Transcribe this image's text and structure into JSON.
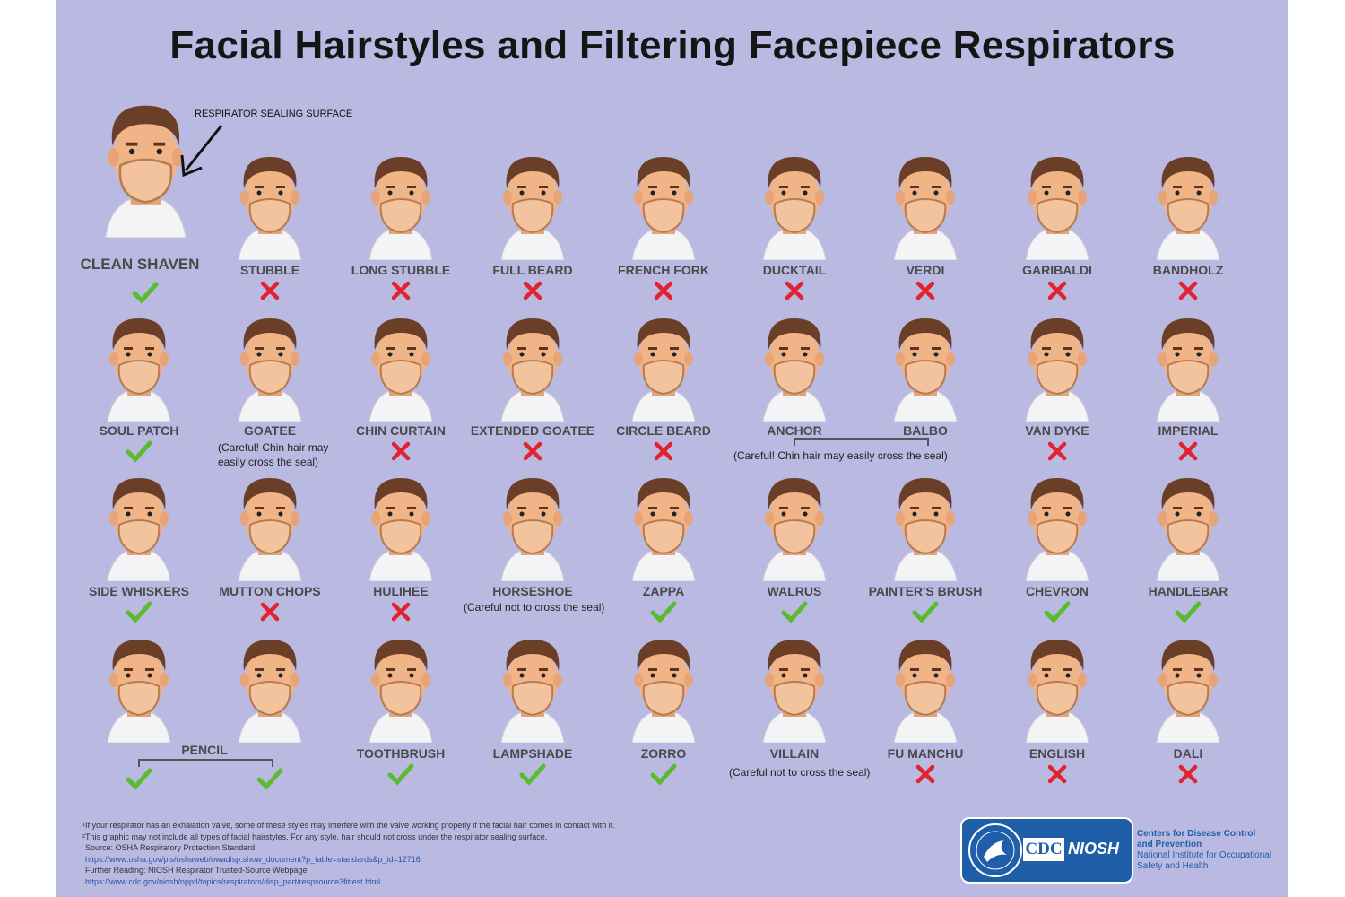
{
  "title": "Facial Hairstyles and Filtering Facepiece Respirators",
  "seal_annotation": "RESPIRATOR SEALING SURFACE",
  "colors": {
    "background": "#b9b9e2",
    "check": "#5bbb2f",
    "cross": "#e0232f",
    "cdc_blue": "#1f5ea8"
  },
  "styles": [
    {
      "name": "CLEAN SHAVEN",
      "ok": true
    },
    {
      "name": "STUBBLE",
      "ok": false
    },
    {
      "name": "LONG STUBBLE",
      "ok": false
    },
    {
      "name": "FULL BEARD",
      "ok": false
    },
    {
      "name": "FRENCH FORK",
      "ok": false
    },
    {
      "name": "DUCKTAIL",
      "ok": false
    },
    {
      "name": "VERDI",
      "ok": false
    },
    {
      "name": "GARIBALDI",
      "ok": false
    },
    {
      "name": "BANDHOLZ",
      "ok": false
    },
    {
      "name": "SOUL PATCH",
      "ok": true
    },
    {
      "name": "GOATEE",
      "ok": null
    },
    {
      "name": "CHIN CURTAIN",
      "ok": false
    },
    {
      "name": "EXTENDED GOATEE",
      "ok": false
    },
    {
      "name": "CIRCLE BEARD",
      "ok": false
    },
    {
      "name": "ANCHOR",
      "ok": null
    },
    {
      "name": "BALBO",
      "ok": null
    },
    {
      "name": "VAN DYKE",
      "ok": false
    },
    {
      "name": "IMPERIAL",
      "ok": false
    },
    {
      "name": "SIDE WHISKERS",
      "ok": true
    },
    {
      "name": "MUTTON CHOPS",
      "ok": false
    },
    {
      "name": "HULIHEE",
      "ok": false
    },
    {
      "name": "HORSESHOE",
      "ok": null
    },
    {
      "name": "ZAPPA",
      "ok": true
    },
    {
      "name": "WALRUS",
      "ok": true
    },
    {
      "name": "PAINTER'S BRUSH",
      "ok": true
    },
    {
      "name": "CHEVRON",
      "ok": true
    },
    {
      "name": "HANDLEBAR",
      "ok": true
    },
    {
      "name": "",
      "ok": true
    },
    {
      "name": "",
      "ok": true
    },
    {
      "name": "TOOTHBRUSH",
      "ok": true
    },
    {
      "name": "LAMPSHADE",
      "ok": true
    },
    {
      "name": "ZORRO",
      "ok": true
    },
    {
      "name": "VILLAIN",
      "ok": null
    },
    {
      "name": "FU MANCHU",
      "ok": false
    },
    {
      "name": "ENGLISH",
      "ok": false
    },
    {
      "name": "DALI",
      "ok": false
    }
  ],
  "notes": {
    "goatee": "(Careful! Chin hair may easily cross the seal)",
    "anchor_balbo": "(Careful! Chin hair may easily cross the seal)",
    "horseshoe": "(Careful not to cross the seal)",
    "villain": "(Careful not to cross the seal)",
    "pencil": "PENCIL"
  },
  "footnotes": {
    "f1": "¹If your respirator has an exhalation valve, some of these styles may interfere with the valve working properly if the facial hair comes in contact with it.",
    "f2": "²This graphic may not include all types of facial hairstyles. For any style, hair should not cross under the respirator sealing surface.",
    "source_label": "Source: OSHA Respiratory Protection Standard",
    "source_url": "https://www.osha.gov/pls/oshaweb/owadisp.show_document?p_table=standards&p_id=12716",
    "further_label": "Further Reading: NIOSH Respirator Trusted-Source Webpage",
    "further_url": "https://www.cdc.gov/niosh/npptl/topics/respirators/disp_part/respsource3fittest.html"
  },
  "logo": {
    "cdc": "CDC",
    "niosh": "NIOSH",
    "line1": "Centers for Disease Control",
    "line2": "and Prevention",
    "line3": "National Institute for Occupational",
    "line4": "Safety and Health"
  }
}
